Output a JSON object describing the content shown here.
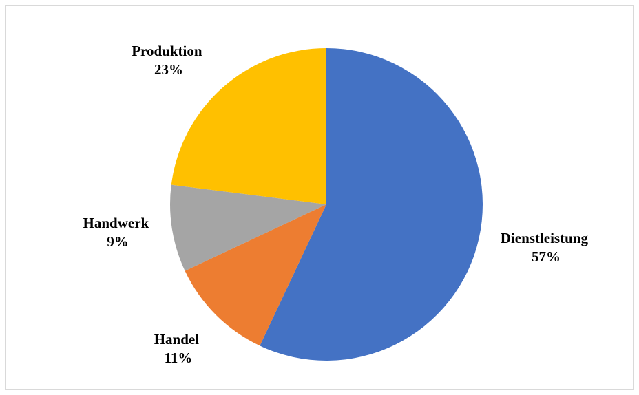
{
  "chart_data": {
    "type": "pie",
    "title": "",
    "categories": [
      "Dienstleistung",
      "Handel",
      "Handwerk",
      "Produktion"
    ],
    "values": [
      57,
      11,
      9,
      23
    ],
    "value_labels": [
      "57%",
      "11%",
      "9%",
      "23%"
    ],
    "unit": "%",
    "colors": [
      "#4472C4",
      "#ED7D31",
      "#A5A5A5",
      "#FFC000"
    ],
    "start_angle": "12 o'clock",
    "direction": "clockwise",
    "legend": "none",
    "labels_position": "outside"
  },
  "labels": {
    "dienstleistung": {
      "name": "Dienstleistung",
      "value": "57%"
    },
    "handel": {
      "name": "Handel",
      "value": "11%"
    },
    "handwerk": {
      "name": "Handwerk",
      "value": "9%"
    },
    "produktion": {
      "name": "Produktion",
      "value": "23%"
    }
  }
}
